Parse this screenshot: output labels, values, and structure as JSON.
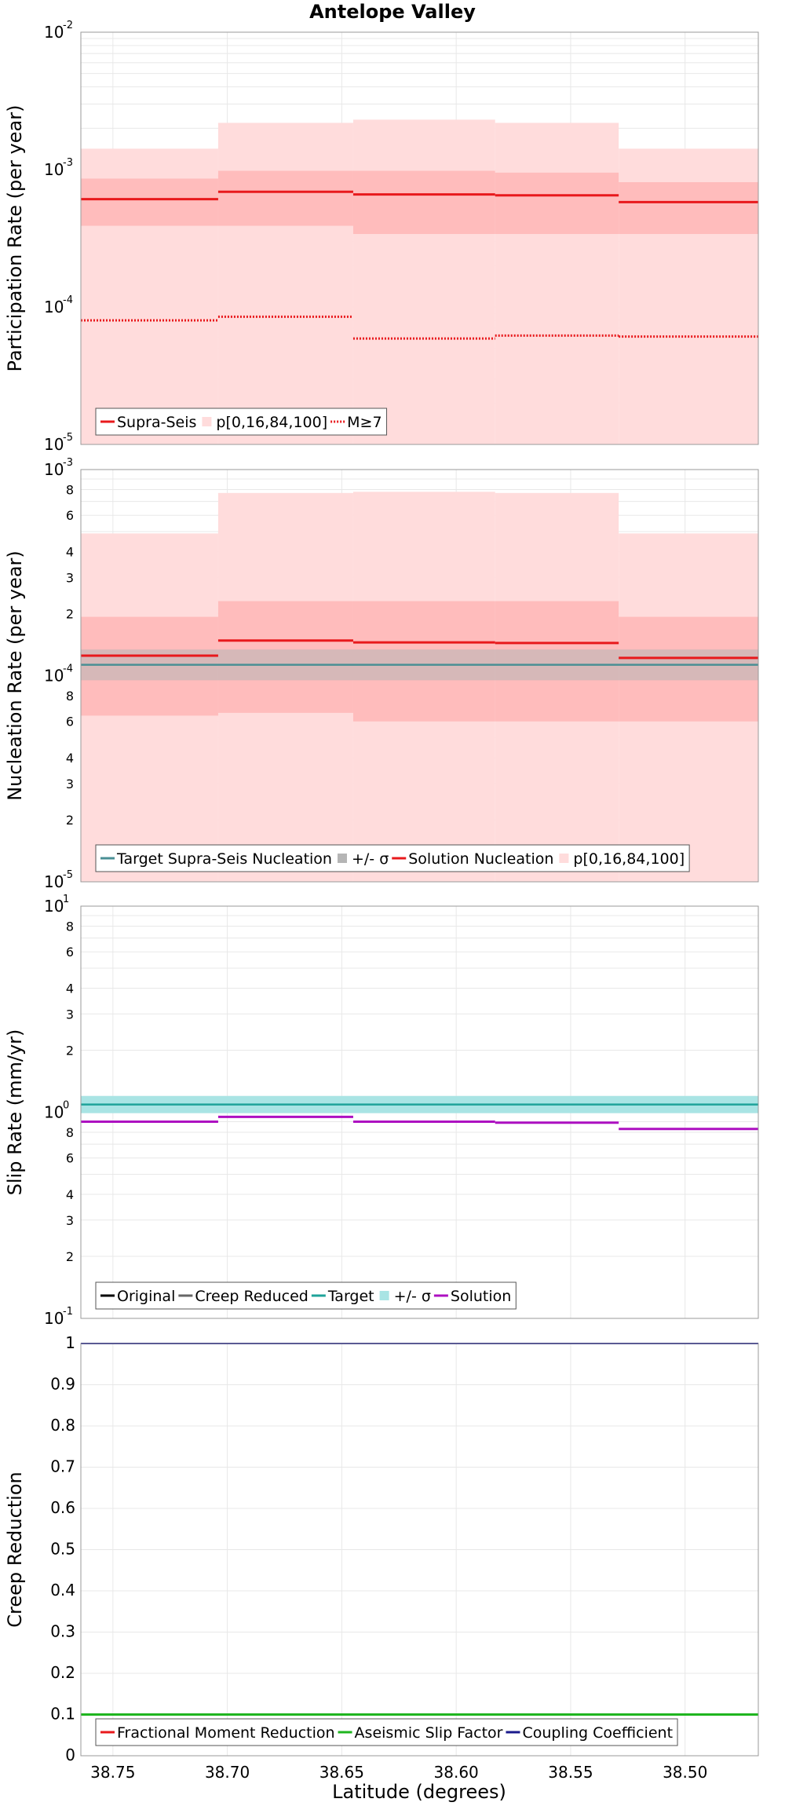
{
  "title": "Antelope Valley",
  "xlabel": "Latitude (degrees)",
  "colors": {
    "red": "#e8191c",
    "band_light": "#ffdcdc",
    "band_dark": "#ffbcbc",
    "target_line": "#4a8f94",
    "sigma_gray": "#b5b5b5",
    "teal": "#1fa39a",
    "teal_band": "#a9e4e4",
    "magenta": "#ad10c1",
    "green": "#1fb51f",
    "navy": "#1a1a8c",
    "creep_gray": "#666666",
    "grid": "#e8e8e8",
    "frame": "#9a9a9a"
  },
  "chart_data": [
    {
      "type": "line",
      "ylabel": "Participation Rate (per year)",
      "xlim": [
        38.764,
        38.468
      ],
      "xticks": [
        38.75,
        38.7,
        38.65,
        38.6,
        38.55,
        38.5
      ],
      "xtick_labels": [
        "38.75",
        "38.70",
        "38.65",
        "38.60",
        "38.55",
        "38.50"
      ],
      "yscale": "log",
      "ylim": [
        1e-05,
        0.01
      ],
      "yticks": [
        {
          "value": 1e-05,
          "base": "10",
          "exp": "-5"
        },
        {
          "value": 0.0001,
          "base": "10",
          "exp": "-4"
        },
        {
          "value": 0.001,
          "base": "10",
          "exp": "-3"
        },
        {
          "value": 0.01,
          "base": "10",
          "exp": "-2"
        }
      ],
      "bin_edges": [
        38.764,
        38.704,
        38.645,
        38.583,
        38.529,
        38.468
      ],
      "bands": [
        {
          "name": "p[0,16,84,100]",
          "color": "#ffdcdc",
          "lower": [
            1e-05,
            1e-05,
            1e-05,
            1e-05,
            1e-05
          ],
          "upper": [
            0.00142,
            0.00219,
            0.00231,
            0.00219,
            0.00142
          ]
        },
        {
          "color": "#ffbcbc",
          "lower": [
            0.00039,
            0.00039,
            0.00034,
            0.00034,
            0.00034
          ],
          "upper": [
            0.00086,
            0.00098,
            0.00098,
            0.00095,
            0.00081
          ]
        }
      ],
      "series": [
        {
          "name": "Supra-Seis",
          "color": "#e8191c",
          "style": "solid",
          "values": [
            0.00061,
            0.00069,
            0.00066,
            0.00065,
            0.00058
          ]
        },
        {
          "name": "M≥7",
          "color": "#e8191c",
          "style": "dotted",
          "values": [
            8e-05,
            8.5e-05,
            5.9e-05,
            6.2e-05,
            6.1e-05
          ]
        }
      ],
      "legend": [
        {
          "label": "Supra-Seis",
          "kind": "line",
          "color": "#e8191c"
        },
        {
          "label": "p[0,16,84,100]",
          "kind": "box",
          "color": "#ffdcdc"
        },
        {
          "label": "M≥7",
          "kind": "dotted",
          "color": "#e8191c"
        }
      ]
    },
    {
      "type": "line",
      "ylabel": "Nucleation Rate (per year)",
      "xlim": [
        38.764,
        38.468
      ],
      "yscale": "log",
      "ylim": [
        1e-05,
        0.001
      ],
      "yticks": [
        {
          "value": 1e-05,
          "base": "10",
          "exp": "-5"
        },
        {
          "value": 2e-05,
          "label": "2"
        },
        {
          "value": 3e-05,
          "label": "3"
        },
        {
          "value": 4e-05,
          "label": "4"
        },
        {
          "value": 6e-05,
          "label": "6"
        },
        {
          "value": 8e-05,
          "label": "8"
        },
        {
          "value": 0.0001,
          "base": "10",
          "exp": "-4"
        },
        {
          "value": 0.0002,
          "label": "2"
        },
        {
          "value": 0.0003,
          "label": "3"
        },
        {
          "value": 0.0004,
          "label": "4"
        },
        {
          "value": 0.0006,
          "label": "6"
        },
        {
          "value": 0.0008,
          "label": "8"
        },
        {
          "value": 0.001,
          "base": "10",
          "exp": "-3"
        }
      ],
      "bin_edges": [
        38.764,
        38.704,
        38.645,
        38.583,
        38.529,
        38.468
      ],
      "bands": [
        {
          "name": "p[0,16,84,100]",
          "color": "#ffdcdc",
          "lower": [
            1e-05,
            1e-05,
            1e-05,
            1e-05,
            1e-05
          ],
          "upper": [
            0.00049,
            0.00077,
            0.00078,
            0.00077,
            0.00049
          ]
        },
        {
          "color": "#ffbcbc",
          "lower": [
            6.4e-05,
            6.6e-05,
            6e-05,
            6e-05,
            6e-05
          ],
          "upper": [
            0.000193,
            0.00023,
            0.00023,
            0.00023,
            0.000193
          ]
        }
      ],
      "target": {
        "name": "Target Supra-Seis Nucleation",
        "color": "#4a8f94",
        "value": 0.000113,
        "lower": 9.5e-05,
        "upper": 0.000134,
        "sigma_name": "+/- σ",
        "sigma_color": "#b5b5b5"
      },
      "series": [
        {
          "name": "Solution Nucleation",
          "color": "#e8191c",
          "style": "solid",
          "values": [
            0.000125,
            0.000148,
            0.000145,
            0.000144,
            0.000122
          ]
        }
      ],
      "legend": [
        {
          "label": "Target Supra-Seis Nucleation",
          "kind": "line",
          "color": "#4a8f94"
        },
        {
          "label": "+/- σ",
          "kind": "box",
          "color": "#b5b5b5"
        },
        {
          "label": "Solution Nucleation",
          "kind": "line",
          "color": "#e8191c"
        },
        {
          "label": "p[0,16,84,100]",
          "kind": "box",
          "color": "#ffdcdc"
        }
      ]
    },
    {
      "type": "line",
      "ylabel": "Slip Rate (mm/yr)",
      "xlim": [
        38.764,
        38.468
      ],
      "yscale": "log",
      "ylim": [
        0.1,
        10
      ],
      "yticks": [
        {
          "value": 0.1,
          "base": "10",
          "exp": "-1"
        },
        {
          "value": 0.2,
          "label": "2"
        },
        {
          "value": 0.3,
          "label": "3"
        },
        {
          "value": 0.4,
          "label": "4"
        },
        {
          "value": 0.6,
          "label": "6"
        },
        {
          "value": 0.8,
          "label": "8"
        },
        {
          "value": 1,
          "base": "10",
          "exp": "0"
        },
        {
          "value": 2,
          "label": "2"
        },
        {
          "value": 3,
          "label": "3"
        },
        {
          "value": 4,
          "label": "4"
        },
        {
          "value": 6,
          "label": "6"
        },
        {
          "value": 8,
          "label": "8"
        },
        {
          "value": 10,
          "base": "10",
          "exp": "1"
        }
      ],
      "bin_edges": [
        38.764,
        38.704,
        38.645,
        38.583,
        38.529,
        38.468
      ],
      "target": {
        "name": "Target",
        "color": "#1fa39a",
        "value": 1.09,
        "lower": 0.99,
        "upper": 1.2,
        "sigma_name": "+/- σ",
        "sigma_color": "#a9e4e4"
      },
      "series": [
        {
          "name": "Solution",
          "color": "#ad10c1",
          "style": "solid",
          "values": [
            0.9,
            0.95,
            0.9,
            0.89,
            0.83
          ]
        }
      ],
      "legend": [
        {
          "label": "Original",
          "kind": "line",
          "color": "#000000"
        },
        {
          "label": "Creep Reduced",
          "kind": "line",
          "color": "#666666"
        },
        {
          "label": "Target",
          "kind": "line",
          "color": "#1fa39a"
        },
        {
          "label": "+/- σ",
          "kind": "box",
          "color": "#a9e4e4"
        },
        {
          "label": "Solution",
          "kind": "line",
          "color": "#ad10c1"
        }
      ]
    },
    {
      "type": "line",
      "ylabel": "Creep Reduction",
      "xlabel": "Latitude (degrees)",
      "xlim": [
        38.764,
        38.468
      ],
      "yscale": "linear",
      "ylim": [
        0,
        1
      ],
      "yticks": [
        {
          "value": 0,
          "label": "0"
        },
        {
          "value": 0.1,
          "label": "0.1"
        },
        {
          "value": 0.2,
          "label": "0.2"
        },
        {
          "value": 0.3,
          "label": "0.3"
        },
        {
          "value": 0.4,
          "label": "0.4"
        },
        {
          "value": 0.5,
          "label": "0.5"
        },
        {
          "value": 0.6,
          "label": "0.6"
        },
        {
          "value": 0.7,
          "label": "0.7"
        },
        {
          "value": 0.8,
          "label": "0.8"
        },
        {
          "value": 0.9,
          "label": "0.9"
        },
        {
          "value": 1,
          "label": "1"
        }
      ],
      "series": [
        {
          "name": "Aseismic Slip Factor",
          "color": "#1fb51f",
          "style": "solid",
          "value": 0.1
        },
        {
          "name": "Coupling Coefficient",
          "color": "#1a1a8c",
          "style": "solid",
          "value": 1.0
        }
      ],
      "legend": [
        {
          "label": "Fractional Moment Reduction",
          "kind": "line",
          "color": "#e8191c"
        },
        {
          "label": "Aseismic Slip Factor",
          "kind": "line",
          "color": "#1fb51f"
        },
        {
          "label": "Coupling Coefficient",
          "kind": "line",
          "color": "#1a1a8c"
        }
      ]
    }
  ]
}
